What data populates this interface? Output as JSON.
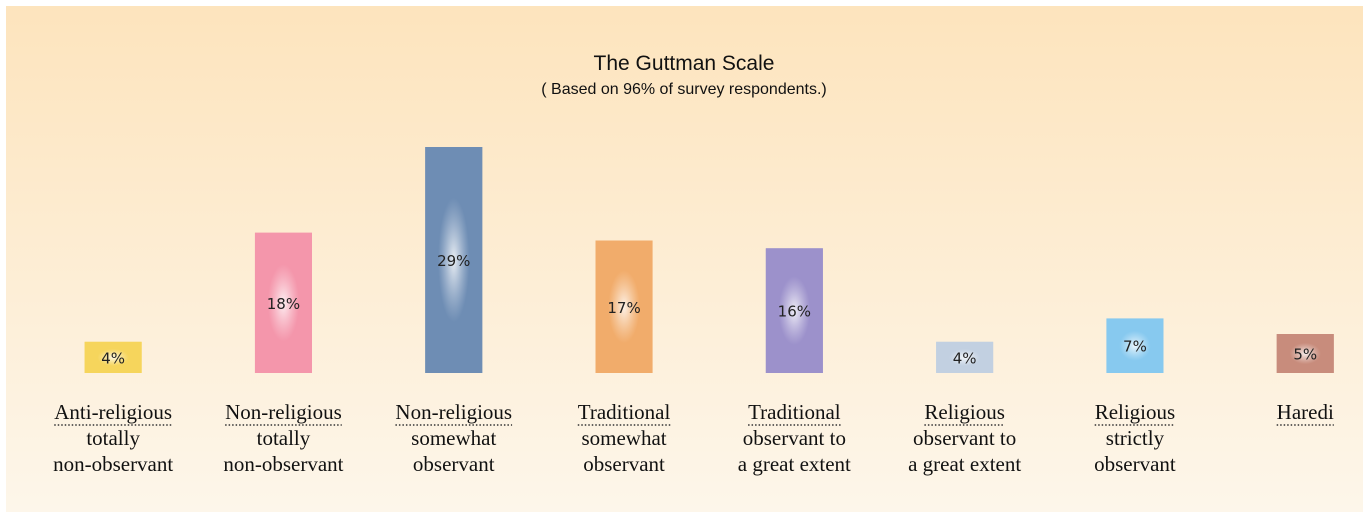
{
  "chart_data": {
    "type": "bar",
    "title": "The Guttman Scale",
    "subtitle": "( Based on 96% of survey respondents.)",
    "categories": [
      [
        "Anti-religious",
        "totally",
        "non-observant"
      ],
      [
        "Non-religious",
        "totally",
        "non-observant"
      ],
      [
        "Non-religious",
        "somewhat",
        "observant"
      ],
      [
        "Traditional",
        "somewhat",
        "observant"
      ],
      [
        "Traditional",
        "observant to",
        "a great extent"
      ],
      [
        "Religious",
        "observant to",
        "a great extent"
      ],
      [
        "Religious",
        "strictly",
        "observant"
      ],
      [
        "Haredi"
      ]
    ],
    "values": [
      4,
      18,
      29,
      17,
      16,
      4,
      7,
      5
    ],
    "value_labels": [
      "4%",
      "18%",
      "29%",
      "17%",
      "16%",
      "4%",
      "7%",
      "5%"
    ],
    "colors": [
      "#f6d55c",
      "#f496ab",
      "#6e8db4",
      "#f1ac6b",
      "#9c91cb",
      "#c2d0e1",
      "#87c9ef",
      "#c88c7c"
    ]
  }
}
